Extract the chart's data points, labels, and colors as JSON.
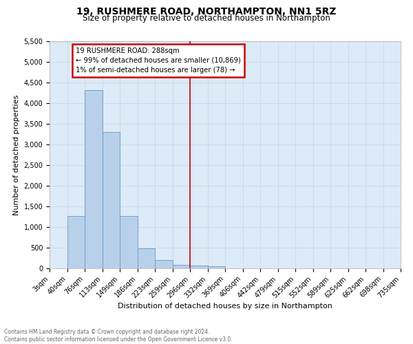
{
  "title": "19, RUSHMERE ROAD, NORTHAMPTON, NN1 5RZ",
  "subtitle": "Size of property relative to detached houses in Northampton",
  "xlabel": "Distribution of detached houses by size in Northampton",
  "ylabel": "Number of detached properties",
  "footer_line1": "Contains HM Land Registry data © Crown copyright and database right 2024.",
  "footer_line2": "Contains public sector information licensed under the Open Government Licence v3.0.",
  "bin_labels": [
    "3sqm",
    "40sqm",
    "76sqm",
    "113sqm",
    "149sqm",
    "186sqm",
    "223sqm",
    "259sqm",
    "296sqm",
    "332sqm",
    "369sqm",
    "406sqm",
    "442sqm",
    "479sqm",
    "515sqm",
    "552sqm",
    "589sqm",
    "625sqm",
    "662sqm",
    "698sqm",
    "735sqm"
  ],
  "bar_heights": [
    0,
    1260,
    4320,
    3300,
    1270,
    480,
    200,
    90,
    70,
    55,
    0,
    0,
    0,
    0,
    0,
    0,
    0,
    0,
    0,
    0,
    0
  ],
  "bar_color": "#b8d0ea",
  "bar_edge_color": "#6699cc",
  "vline_x": 8.0,
  "vline_label": "19 RUSHMERE ROAD: 288sqm",
  "annotation_line1": "← 99% of detached houses are smaller (10,869)",
  "annotation_line2": "1% of semi-detached houses are larger (78) →",
  "annotation_box_color": "#ffffff",
  "annotation_box_edge": "#cc0000",
  "vline_color": "#cc0000",
  "ylim": [
    0,
    5500
  ],
  "yticks": [
    0,
    500,
    1000,
    1500,
    2000,
    2500,
    3000,
    3500,
    4000,
    4500,
    5000,
    5500
  ],
  "grid_color": "#c8d8e8",
  "bg_color": "#ddeaf7",
  "title_fontsize": 10,
  "subtitle_fontsize": 8.5,
  "label_fontsize": 8,
  "tick_fontsize": 7,
  "footer_fontsize": 5.5
}
